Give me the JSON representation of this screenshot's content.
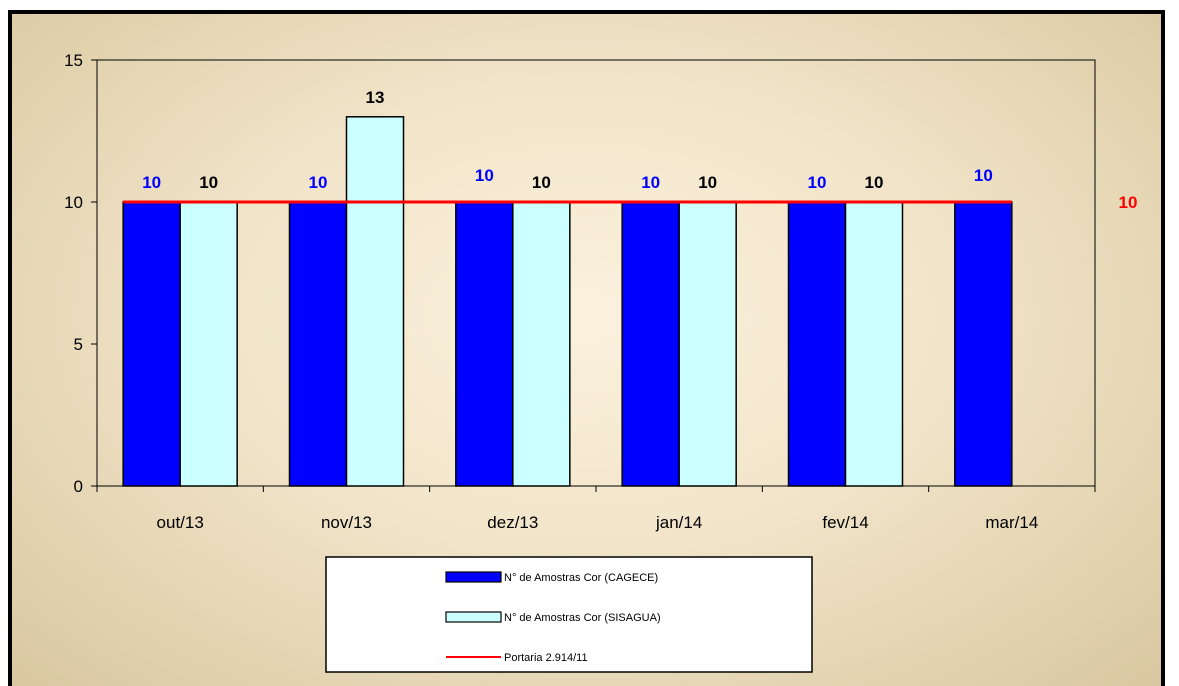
{
  "chart_data": {
    "type": "bar",
    "categories": [
      "out/13",
      "nov/13",
      "dez/13",
      "jan/14",
      "fev/14",
      "mar/14"
    ],
    "series": [
      {
        "name": "N° de Amostras Cor (CAGECE)",
        "values": [
          10,
          10,
          10,
          10,
          10,
          10
        ],
        "color": "#0000ff",
        "label_color": "#0000ff"
      },
      {
        "name": "N° de Amostras Cor (SISAGUA)",
        "values": [
          10,
          13,
          10,
          10,
          10,
          null
        ],
        "color": "#ccffff",
        "label_color": "#000000"
      }
    ],
    "reference_line": {
      "name": "Portaria 2.914/11",
      "value": 10,
      "color": "#ff0000",
      "label": "10"
    },
    "ylim": [
      0,
      15
    ],
    "yticks": [
      0,
      5,
      10,
      15
    ],
    "grid": false,
    "legend_position": "bottom",
    "title": "",
    "xlabel": "",
    "ylabel": ""
  }
}
